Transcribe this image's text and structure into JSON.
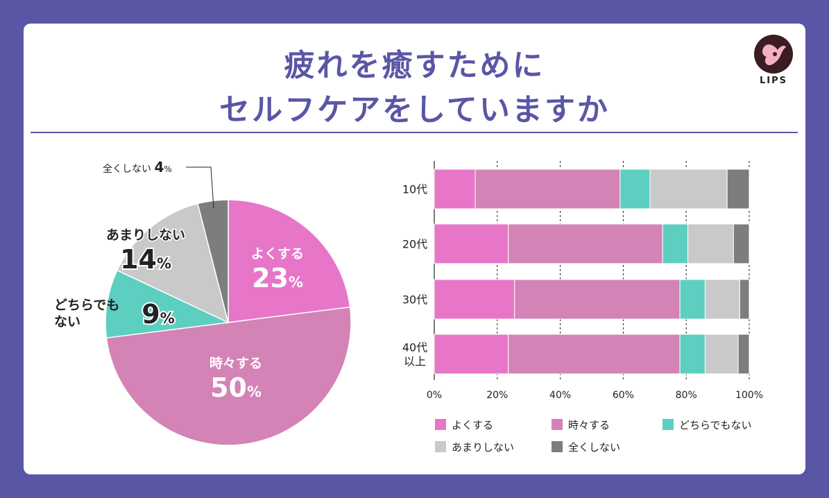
{
  "title": {
    "line1": "疲れを癒すために",
    "line2": "セルフケアをしていますか"
  },
  "logo": {
    "text": "LIPS",
    "icon": "lips-logo-icon"
  },
  "colors": {
    "often": "#e776c9",
    "sometimes": "#d383b5",
    "neutral": "#5ccfc0",
    "rarely": "#c9c9c9",
    "never": "#7d7d7d",
    "accent": "#5a56a6",
    "background": "#5a56a6"
  },
  "chart_data": [
    {
      "type": "pie",
      "slices": [
        {
          "label": "よくする",
          "value": 23,
          "unit": "%"
        },
        {
          "label": "時々する",
          "value": 50,
          "unit": "%"
        },
        {
          "label": "どちらでもない",
          "value": 9,
          "unit": "%"
        },
        {
          "label": "あまりしない",
          "value": 14,
          "unit": "%"
        },
        {
          "label": "全くしない",
          "value": 4,
          "unit": "%"
        }
      ]
    },
    {
      "type": "bar",
      "orientation": "horizontal",
      "stacked": true,
      "categories": [
        "10代",
        "20代",
        "30代",
        "40代\n以上"
      ],
      "series": [
        {
          "name": "よくする",
          "values": [
            13,
            23.5,
            25.5,
            23.5
          ]
        },
        {
          "name": "時々する",
          "values": [
            46,
            49,
            52.5,
            54.5
          ]
        },
        {
          "name": "どちらでもない",
          "values": [
            9.5,
            8,
            8,
            8
          ]
        },
        {
          "name": "あまりしない",
          "values": [
            24.5,
            14.5,
            11,
            10.5
          ]
        },
        {
          "name": "全くしない",
          "values": [
            7,
            5,
            3,
            3.5
          ]
        }
      ],
      "xlim": [
        0,
        100
      ],
      "xticks": [
        "0%",
        "20%",
        "40%",
        "60%",
        "80%",
        "100%"
      ],
      "grid": true,
      "legend_position": "bottom"
    }
  ]
}
